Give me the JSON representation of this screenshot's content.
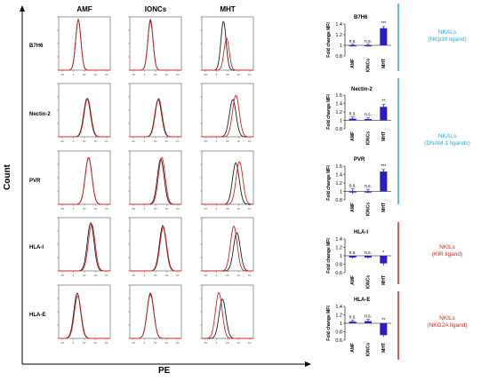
{
  "axis": {
    "y_label": "Count",
    "x_label": "PE"
  },
  "columns": [
    "AMF",
    "IONCs",
    "MHT"
  ],
  "rows": [
    "B7H6",
    "Nectin-2",
    "PVR",
    "HLA-I",
    "HLA-E"
  ],
  "groups": [
    {
      "title": "NKALs",
      "subtitle": "(NKp30 ligand)",
      "color": "#29abe2"
    },
    {
      "title": "NKALs",
      "subtitle": "(DNAM-1 ligands)",
      "color": "#29abe2"
    },
    {
      "title": "NKILs",
      "subtitle": "(KIR ligand)",
      "color": "#e02020"
    },
    {
      "title": "NKILs",
      "subtitle": "(NKG2A ligand)",
      "color": "#e02020"
    }
  ],
  "colors": {
    "treated": "#e02020",
    "control": "#222222",
    "bar": "#2b1cc4",
    "nkal": "#29abe2",
    "nkil": "#e02020"
  },
  "histogram_tick_labels": [
    "-10³",
    "0",
    "10³",
    "10⁴",
    "10⁵"
  ],
  "chart_data": [
    {
      "type": "bar",
      "title": "B7H6",
      "ylabel": "Fold change MFI",
      "categories": [
        "AMF",
        "IONCs",
        "MHT"
      ],
      "values": [
        1.0,
        1.0,
        1.32
      ],
      "errors": [
        0.02,
        0.02,
        0.03
      ],
      "annotations": [
        "n.s.",
        "n.s.",
        "***"
      ],
      "ylim": [
        0.8,
        1.4
      ],
      "ticks": [
        "0.8",
        "1",
        "1.2",
        "1.4"
      ]
    },
    {
      "type": "bar",
      "title": "Nectin-2",
      "ylabel": "Fold change MFI",
      "categories": [
        "AMF",
        "IONCs",
        "MHT"
      ],
      "values": [
        1.04,
        1.03,
        1.32
      ],
      "errors": [
        0.04,
        0.03,
        0.06
      ],
      "annotations": [
        "n.s.",
        "n.s.",
        "**"
      ],
      "ylim": [
        0.8,
        1.6
      ],
      "ticks": [
        "0.8",
        "1",
        "1.2",
        "1.4",
        "1.6"
      ]
    },
    {
      "type": "bar",
      "title": "PVR",
      "ylabel": "Fold change MFI",
      "categories": [
        "AMF",
        "IONCs",
        "MHT"
      ],
      "values": [
        1.0,
        1.0,
        1.47
      ],
      "errors": [
        0.06,
        0.05,
        0.05
      ],
      "annotations": [
        "n.s.",
        "n.s.",
        "***"
      ],
      "ylim": [
        0.8,
        1.6
      ],
      "ticks": [
        "0.8",
        "1",
        "1.2",
        "1.4",
        "1.6"
      ]
    },
    {
      "type": "bar",
      "title": "HLA-I",
      "ylabel": "Fold change MFI",
      "categories": [
        "AMF",
        "IONCs",
        "MHT"
      ],
      "values": [
        0.96,
        0.96,
        0.82
      ],
      "errors": [
        0.03,
        0.03,
        0.05
      ],
      "annotations": [
        "n.s.",
        "n.s.",
        "*"
      ],
      "ylim": [
        0.6,
        1.4
      ],
      "ticks": [
        "0.6",
        "0.8",
        "1",
        "1.2",
        "1.4"
      ]
    },
    {
      "type": "bar",
      "title": "HLA-E",
      "ylabel": "Fold change MFI",
      "categories": [
        "AMF",
        "IONCs",
        "MHT"
      ],
      "values": [
        1.04,
        1.05,
        0.72
      ],
      "errors": [
        0.03,
        0.04,
        0.04
      ],
      "annotations": [
        "n.s.",
        "n.s.",
        "**"
      ],
      "ylim": [
        0.6,
        1.4
      ],
      "ticks": [
        "0.6",
        "0.8",
        "1",
        "1.2",
        "1.4"
      ]
    }
  ]
}
